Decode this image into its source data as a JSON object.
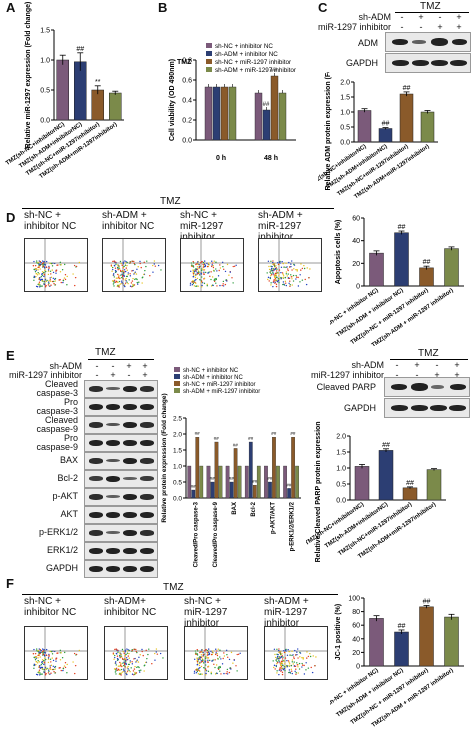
{
  "panels": {
    "A": {
      "label": "A",
      "ylabel": "Relative miR-1297 expression (Fold change)",
      "yticks": [
        "0.0",
        "0.5",
        "1.0",
        "1.5"
      ],
      "markers": [
        "",
        "##",
        "**",
        ""
      ]
    },
    "B": {
      "label": "B",
      "condition": "TMZ",
      "ylabel": "Cell viability (OD 490nm)",
      "yticks": [
        "0.0",
        "0.2",
        "0.4",
        "0.6",
        "0.8"
      ],
      "xcats": [
        "0 h",
        "48 h"
      ],
      "legend": [
        "sh-NC + inhibitor NC",
        "sh-ADM + inhibitor NC",
        "sh-NC + miR-1297 inhibitor",
        "sh-ADM + miR-1297 inhibitor"
      ],
      "markers48": [
        "",
        "##",
        "##",
        ""
      ]
    },
    "C": {
      "label": "C",
      "condition": "TMZ",
      "rows": [
        {
          "name": "sh-ADM",
          "signs": [
            "-",
            "+",
            "-",
            "+"
          ]
        },
        {
          "name": "miR-1297 inhibitor",
          "signs": [
            "-",
            "-",
            "+",
            "+"
          ]
        }
      ],
      "blots": [
        "ADM",
        "GAPDH"
      ],
      "ylabel": "Relative ADM protein expression (Fold change)",
      "yticks": [
        "0.0",
        "0.5",
        "1.0",
        "1.5",
        "2.0"
      ],
      "markers": [
        "",
        "##",
        "##",
        ""
      ]
    },
    "D": {
      "label": "D",
      "condition": "TMZ",
      "groups": [
        "sh-NC +\ninhibitor NC",
        "sh-ADM +\ninhibitor NC",
        "sh-NC +\nmiR-1297 inhibitor",
        "sh-ADM +\nmiR-1297 inhibitor"
      ],
      "ylabel": "Apoptosis cells (%)",
      "yticks": [
        "0",
        "20",
        "40",
        "60"
      ],
      "markers": [
        "",
        "##",
        "##",
        ""
      ]
    },
    "E": {
      "label": "E",
      "condition": "TMZ",
      "rows": [
        {
          "name": "sh-ADM",
          "signs": [
            "-",
            "-",
            "+",
            "+"
          ]
        },
        {
          "name": "miR-1297 inhibitor",
          "signs": [
            "-",
            "+",
            "-",
            "+"
          ]
        }
      ],
      "blots": [
        "Cleaved\ncaspase-3",
        "Pro\ncaspase-3",
        "Cleaved\ncaspase-9",
        "Pro\ncaspase-9",
        "BAX",
        "Bcl-2",
        "p-AKT",
        "AKT",
        "p-ERK1/2",
        "ERK1/2",
        "GAPDH"
      ],
      "legend": [
        "sh-NC + inhibitor NC",
        "sh-ADM + inhibitor NC",
        "sh-NC + miR-1297 inhibitor",
        "sh-ADM + miR-1297 inhibitor"
      ],
      "ylabel": "Relative protein expression (Fold change)",
      "yticks": [
        "0.0",
        "0.5",
        "1.0",
        "1.5",
        "2.0",
        "2.5"
      ],
      "xcats": [
        "Cleaved/Pro caspase-3",
        "Cleaved/Pro caspase-9",
        "BAX",
        "Bcl-2",
        "p-AKT/AKT",
        "p-ERK1/2/ERK1/2"
      ]
    },
    "E2": {
      "condition": "TMZ",
      "rows": [
        {
          "name": "sh-ADM",
          "signs": [
            "-",
            "+",
            "-",
            "+"
          ]
        },
        {
          "name": "miR-1297 inhibitor",
          "signs": [
            "-",
            "-",
            "+",
            "+"
          ]
        }
      ],
      "blots": [
        "Cleaved PARP",
        "GAPDH"
      ],
      "ylabel": "Relative Cleaved PARP protein expression (Fold change)",
      "yticks": [
        "0.0",
        "0.5",
        "1.0",
        "1.5",
        "2.0"
      ],
      "markers": [
        "",
        "##",
        "##",
        ""
      ]
    },
    "F": {
      "label": "F",
      "condition": "TMZ",
      "groups": [
        "sh-NC +\ninhibitor NC",
        "sh-ADM+\ninhibitor NC",
        "sh-NC +\nmiR-1297 inhibitor",
        "sh-ADM +\nmiR-1297 inhibitor"
      ],
      "ylabel": "JC-1 positive (%)",
      "yticks": [
        "0",
        "20",
        "40",
        "60",
        "80",
        "100"
      ],
      "markers": [
        "",
        "##",
        "##",
        ""
      ]
    }
  },
  "group_labels": [
    "TMZ(sh-NC+inhibitorNC)",
    "TMZ(sh-ADM+inhibitorNC)",
    "TMZ(sh-NC+miR-1297inhibitor)",
    "TMZ(sh-ADM+miR-1297inhibitor)"
  ],
  "group_labels_spaced": [
    "TMZ(sh-NC + inhibitor NC)",
    "TMZ(sh-ADM + inhibitor NC)",
    "TMZ(sh-NC + miR-1297 inhibitor)",
    "TMZ(sh-ADM + miR-1297 inhibitor)"
  ],
  "colors": [
    "#7b5a7a",
    "#2c3e73",
    "#8a5a2a",
    "#7b8a4a"
  ],
  "chart_data": [
    {
      "panel": "A",
      "type": "bar",
      "categories": [
        "TMZ(sh-NC+inhibitorNC)",
        "TMZ(sh-ADM+inhibitorNC)",
        "TMZ(sh-NC+miR-1297inhibitor)",
        "TMZ(sh-ADM+miR-1297inhibitor)"
      ],
      "values": [
        1.0,
        0.97,
        0.5,
        0.45
      ],
      "errors": [
        0.08,
        0.15,
        0.07,
        0.03
      ],
      "ylabel": "Relative miR-1297 expression (Fold change)",
      "ylim": [
        0,
        1.5
      ]
    },
    {
      "panel": "B",
      "type": "bar",
      "categories": [
        "0 h",
        "48 h"
      ],
      "series": [
        {
          "name": "sh-NC + inhibitor NC",
          "values": [
            0.53,
            0.47
          ]
        },
        {
          "name": "sh-ADM + inhibitor NC",
          "values": [
            0.53,
            0.3
          ]
        },
        {
          "name": "sh-NC + miR-1297 inhibitor",
          "values": [
            0.53,
            0.64
          ]
        },
        {
          "name": "sh-ADM + miR-1297 inhibitor",
          "values": [
            0.53,
            0.47
          ]
        }
      ],
      "ylabel": "Cell viability (OD 490nm)",
      "ylim": [
        0,
        0.8
      ]
    },
    {
      "panel": "C",
      "type": "bar",
      "categories": [
        "TMZ(sh-NC+inhibitorNC)",
        "TMZ(sh-ADM+inhibitorNC)",
        "TMZ(sh-NC+miR-1297inhibitor)",
        "TMZ(sh-ADM+miR-1297inhibitor)"
      ],
      "values": [
        1.05,
        0.45,
        1.6,
        1.0
      ],
      "errors": [
        0.06,
        0.03,
        0.07,
        0.05
      ],
      "ylabel": "Relative ADM protein expression (Fold change)",
      "ylim": [
        0,
        2.0
      ]
    },
    {
      "panel": "D",
      "type": "bar",
      "categories": [
        "TMZ(sh-NC + inhibitor NC)",
        "TMZ(sh-ADM + inhibitor NC)",
        "TMZ(sh-NC + miR-1297 inhibitor)",
        "TMZ(sh-ADM + miR-1297 inhibitor)"
      ],
      "values": [
        29,
        47,
        16,
        33
      ],
      "errors": [
        2,
        1.5,
        1.5,
        1.5
      ],
      "ylabel": "Apoptosis cells (%)",
      "ylim": [
        0,
        60
      ]
    },
    {
      "panel": "E",
      "type": "bar",
      "categories": [
        "Cleaved/Pro caspase-3",
        "Cleaved/Pro caspase-9",
        "BAX",
        "Bcl-2",
        "p-AKT/AKT",
        "p-ERK1/2/ERK1/2"
      ],
      "series": [
        {
          "name": "sh-NC + inhibitor NC",
          "values": [
            1.0,
            1.0,
            1.0,
            1.0,
            1.0,
            1.0
          ]
        },
        {
          "name": "sh-ADM + inhibitor NC",
          "values": [
            0.25,
            0.5,
            0.5,
            1.75,
            0.5,
            0.3
          ]
        },
        {
          "name": "sh-NC + miR-1297 inhibitor",
          "values": [
            1.9,
            1.75,
            1.55,
            0.4,
            1.9,
            1.9
          ]
        },
        {
          "name": "sh-ADM + miR-1297 inhibitor",
          "values": [
            1.0,
            1.0,
            1.0,
            1.0,
            1.0,
            1.0
          ]
        }
      ],
      "ylabel": "Relative protein expression (Fold change)",
      "ylim": [
        0,
        2.5
      ]
    },
    {
      "panel": "E2",
      "type": "bar",
      "categories": [
        "TMZ(sh-NC+inhibitorNC)",
        "TMZ(sh-ADM+inhibitorNC)",
        "TMZ(sh-NC+miR-1297inhibitor)",
        "TMZ(sh-ADM+miR-1297inhibitor)"
      ],
      "values": [
        1.05,
        1.55,
        0.38,
        0.95
      ],
      "errors": [
        0.06,
        0.05,
        0.03,
        0.03
      ],
      "ylabel": "Relative Cleaved PARP protein expression (Fold change)",
      "ylim": [
        0,
        2.0
      ]
    },
    {
      "panel": "F",
      "type": "bar",
      "categories": [
        "TMZ(sh-NC + inhibitor NC)",
        "TMZ(sh-ADM + inhibitor NC)",
        "TMZ(sh-NC + miR-1297 inhibitor)",
        "TMZ(sh-ADM + miR-1297 inhibitor)"
      ],
      "values": [
        70,
        50,
        87,
        72
      ],
      "errors": [
        4,
        3,
        2,
        4
      ],
      "ylabel": "JC-1 positive (%)",
      "ylim": [
        0,
        100
      ]
    }
  ]
}
